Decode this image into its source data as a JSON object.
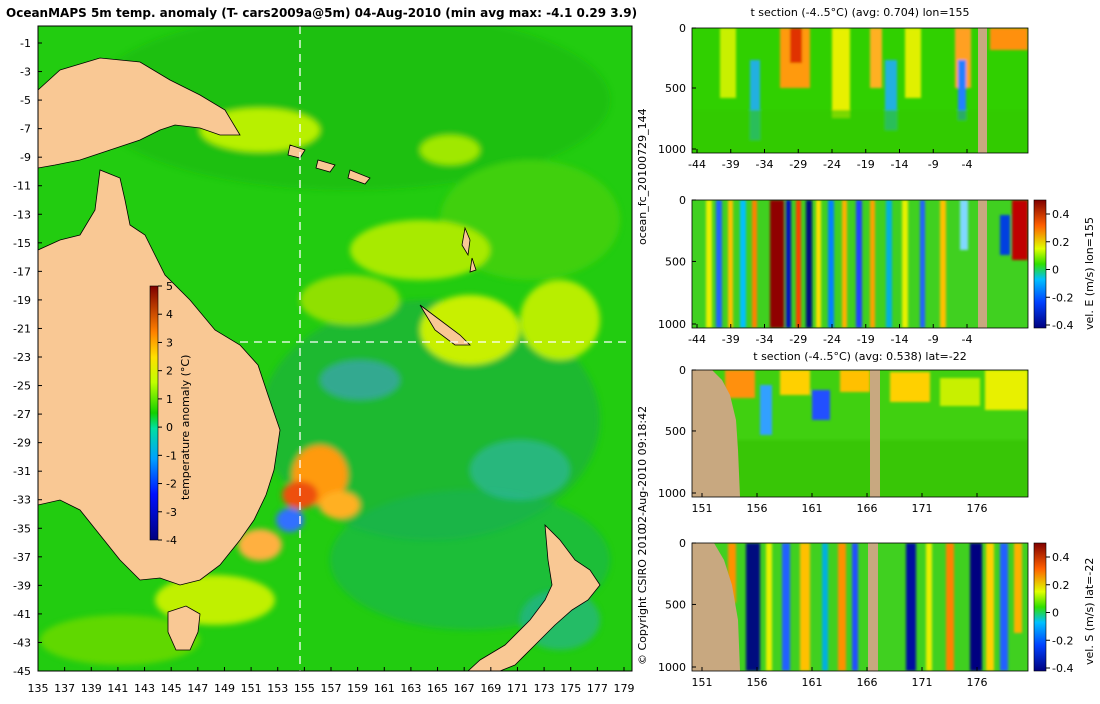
{
  "title": "OceanMAPS 5m temp. anomaly (T- cars2009a@5m) 04-Aug-2010 (min avg max: -4.1 0.29 3.9)",
  "map": {
    "lat_ticks": [
      "-1",
      "-3",
      "-5",
      "-7",
      "-9",
      "-11",
      "-13",
      "-15",
      "-17",
      "-19",
      "-21",
      "-23",
      "-25",
      "-27",
      "-29",
      "-31",
      "-33",
      "-35",
      "-37",
      "-39",
      "-41",
      "-43",
      "-45"
    ],
    "lon_ticks": [
      "135",
      "137",
      "139",
      "141",
      "143",
      "145",
      "147",
      "149",
      "151",
      "153",
      "155",
      "157",
      "159",
      "161",
      "163",
      "165",
      "167",
      "169",
      "171",
      "173",
      "175",
      "177",
      "179"
    ],
    "section_lon": 155,
    "section_lat": -22
  },
  "colorbar": {
    "label": "temperature anomaly (°C)",
    "ticks": [
      "5",
      "4",
      "3",
      "2",
      "1",
      "0",
      "-1",
      "-2",
      "-3",
      "-4"
    ]
  },
  "panels": {
    "p1": {
      "title": "t section (-4..5°C) (avg: 0.704) lon=155",
      "x_ticks": [
        "-44",
        "-39",
        "-34",
        "-29",
        "-24",
        "-19",
        "-14",
        "-9",
        "-4"
      ],
      "y_ticks": [
        "0",
        "500",
        "1000"
      ]
    },
    "p2": {
      "x_ticks": [
        "-44",
        "-39",
        "-34",
        "-29",
        "-24",
        "-19",
        "-14",
        "-9",
        "-4"
      ],
      "y_ticks": [
        "0",
        "500",
        "1000"
      ],
      "cbar_label": "vel. E (m/s) lon=155",
      "cbar_ticks": [
        "0.4",
        "0.2",
        "0",
        "-0.2",
        "-0.4"
      ]
    },
    "p3": {
      "title": "t section (-4..5°C) (avg: 0.538) lat=-22",
      "x_ticks": [
        "151",
        "156",
        "161",
        "166",
        "171",
        "176"
      ],
      "y_ticks": [
        "0",
        "500",
        "1000"
      ]
    },
    "p4": {
      "x_ticks": [
        "151",
        "156",
        "161",
        "166",
        "171",
        "176"
      ],
      "y_ticks": [
        "0",
        "500",
        "1000"
      ],
      "cbar_label": "vel. S (m/s) lat=-22",
      "cbar_ticks": [
        "0.4",
        "0.2",
        "0",
        "-0.2",
        "-0.4"
      ]
    }
  },
  "side_labels": {
    "run": "ocean_fc_20100729_144",
    "time": "02-Aug-2010 09:18:42",
    "copyright": "© Copyright CSIRO 2010"
  }
}
